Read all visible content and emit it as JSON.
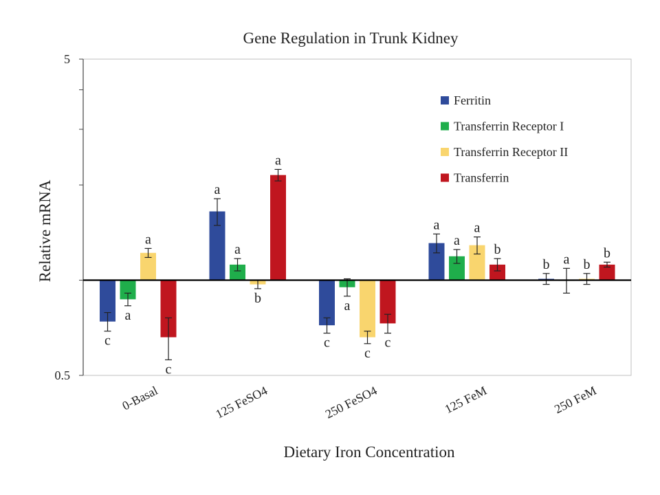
{
  "chart_data": {
    "type": "bar",
    "title": "Gene Regulation in Trunk Kidney",
    "xlabel": "Dietary Iron Concentration",
    "ylabel": "Relative mRNA",
    "yscale": "log",
    "ylim": [
      0.5,
      5
    ],
    "baseline": 1,
    "yticks": [
      "5",
      "0.5"
    ],
    "categories": [
      "0-Basal",
      "125 FeSO4",
      "250 FeSO4",
      "125 FeM",
      "250 FeM"
    ],
    "legend_position": "top-right",
    "series": [
      {
        "name": "Ferritin",
        "color": "#2F4B9B",
        "values": [
          0.74,
          1.65,
          0.72,
          1.31,
          1.01
        ],
        "errors": [
          0.05,
          0.16,
          0.04,
          0.09,
          0.04
        ],
        "labels": [
          "c",
          "a",
          "c",
          "a",
          "b"
        ]
      },
      {
        "name": "Transferrin Receptor I",
        "color": "#1FAE4B",
        "values": [
          0.87,
          1.12,
          0.95,
          1.19,
          1.0
        ],
        "errors": [
          0.04,
          0.05,
          0.06,
          0.06,
          0.09
        ],
        "labels": [
          "a",
          "a",
          "a",
          "a",
          "a"
        ]
      },
      {
        "name": "Transferrin Receptor II",
        "color": "#F9D56E",
        "values": [
          1.22,
          0.97,
          0.66,
          1.29,
          1.01
        ],
        "errors": [
          0.04,
          0.03,
          0.03,
          0.08,
          0.04
        ],
        "labels": [
          "a",
          "b",
          "c",
          "a",
          "b"
        ]
      },
      {
        "name": "Transferrin",
        "color": "#C0161F",
        "values": [
          0.66,
          2.15,
          0.73,
          1.12,
          1.12
        ],
        "errors": [
          0.1,
          0.09,
          0.05,
          0.05,
          0.02
        ],
        "labels": [
          "c",
          "a",
          "c",
          "b",
          "b"
        ]
      }
    ]
  }
}
